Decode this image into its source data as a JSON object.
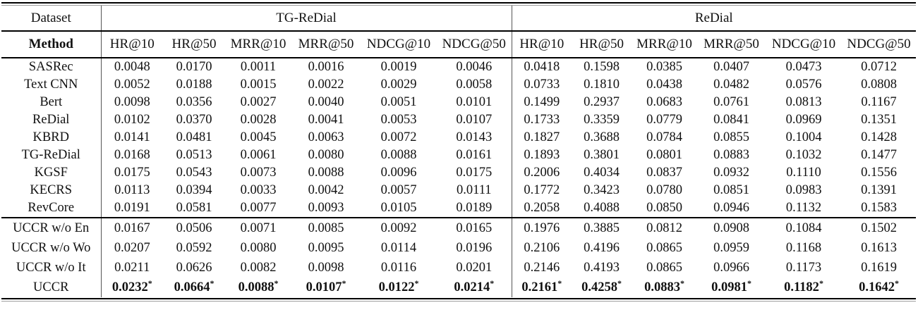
{
  "table": {
    "dataset_header": "Dataset",
    "method_header": "Method",
    "significance_marker": "*",
    "groups": [
      {
        "name": "TG-ReDial",
        "metrics": [
          "HR@10",
          "HR@50",
          "MRR@10",
          "MRR@50",
          "NDCG@10",
          "NDCG@50"
        ]
      },
      {
        "name": "ReDial",
        "metrics": [
          "HR@10",
          "HR@50",
          "MRR@10",
          "MRR@50",
          "NDCG@10",
          "NDCG@50"
        ]
      }
    ],
    "baseline_rows": [
      {
        "method": "SASRec",
        "bold": false,
        "star": false,
        "values": [
          "0.0048",
          "0.0170",
          "0.0011",
          "0.0016",
          "0.0019",
          "0.0046",
          "0.0418",
          "0.1598",
          "0.0385",
          "0.0407",
          "0.0473",
          "0.0712"
        ]
      },
      {
        "method": "Text CNN",
        "bold": false,
        "star": false,
        "values": [
          "0.0052",
          "0.0188",
          "0.0015",
          "0.0022",
          "0.0029",
          "0.0058",
          "0.0733",
          "0.1810",
          "0.0438",
          "0.0482",
          "0.0576",
          "0.0808"
        ]
      },
      {
        "method": "Bert",
        "bold": false,
        "star": false,
        "values": [
          "0.0098",
          "0.0356",
          "0.0027",
          "0.0040",
          "0.0051",
          "0.0101",
          "0.1499",
          "0.2937",
          "0.0683",
          "0.0761",
          "0.0813",
          "0.1167"
        ]
      },
      {
        "method": "ReDial",
        "bold": false,
        "star": false,
        "values": [
          "0.0102",
          "0.0370",
          "0.0028",
          "0.0041",
          "0.0053",
          "0.0107",
          "0.1733",
          "0.3359",
          "0.0779",
          "0.0841",
          "0.0969",
          "0.1351"
        ]
      },
      {
        "method": "KBRD",
        "bold": false,
        "star": false,
        "values": [
          "0.0141",
          "0.0481",
          "0.0045",
          "0.0063",
          "0.0072",
          "0.0143",
          "0.1827",
          "0.3688",
          "0.0784",
          "0.0855",
          "0.1004",
          "0.1428"
        ]
      },
      {
        "method": "TG-ReDial",
        "bold": false,
        "star": false,
        "values": [
          "0.0168",
          "0.0513",
          "0.0061",
          "0.0080",
          "0.0088",
          "0.0161",
          "0.1893",
          "0.3801",
          "0.0801",
          "0.0883",
          "0.1032",
          "0.1477"
        ]
      },
      {
        "method": "KGSF",
        "bold": false,
        "star": false,
        "values": [
          "0.0175",
          "0.0543",
          "0.0073",
          "0.0088",
          "0.0096",
          "0.0175",
          "0.2006",
          "0.4034",
          "0.0837",
          "0.0932",
          "0.1110",
          "0.1556"
        ]
      },
      {
        "method": "KECRS",
        "bold": false,
        "star": false,
        "values": [
          "0.0113",
          "0.0394",
          "0.0033",
          "0.0042",
          "0.0057",
          "0.0111",
          "0.1772",
          "0.3423",
          "0.0780",
          "0.0851",
          "0.0983",
          "0.1391"
        ]
      },
      {
        "method": "RevCore",
        "bold": false,
        "star": false,
        "values": [
          "0.0191",
          "0.0581",
          "0.0077",
          "0.0093",
          "0.0105",
          "0.0189",
          "0.2058",
          "0.4088",
          "0.0850",
          "0.0946",
          "0.1132",
          "0.1583"
        ]
      }
    ],
    "uccr_rows": [
      {
        "method": "UCCR w/o En",
        "bold": false,
        "star": false,
        "values": [
          "0.0167",
          "0.0506",
          "0.0071",
          "0.0085",
          "0.0092",
          "0.0165",
          "0.1976",
          "0.3885",
          "0.0812",
          "0.0908",
          "0.1084",
          "0.1502"
        ]
      },
      {
        "method": "UCCR w/o Wo",
        "bold": false,
        "star": false,
        "values": [
          "0.0207",
          "0.0592",
          "0.0080",
          "0.0095",
          "0.0114",
          "0.0196",
          "0.2106",
          "0.4196",
          "0.0865",
          "0.0959",
          "0.1168",
          "0.1613"
        ]
      },
      {
        "method": "UCCR w/o It",
        "bold": false,
        "star": false,
        "values": [
          "0.0211",
          "0.0626",
          "0.0082",
          "0.0098",
          "0.0116",
          "0.0201",
          "0.2146",
          "0.4193",
          "0.0865",
          "0.0966",
          "0.1173",
          "0.1619"
        ]
      },
      {
        "method": "UCCR",
        "bold": true,
        "star": true,
        "values": [
          "0.0232",
          "0.0664",
          "0.0088",
          "0.0107",
          "0.0122",
          "0.0214",
          "0.2161",
          "0.4258",
          "0.0883",
          "0.0981",
          "0.1182",
          "0.1642"
        ]
      }
    ]
  },
  "colors": {
    "text": "#111111",
    "rule": "#000000",
    "divider": "#555555",
    "background": "#ffffff"
  }
}
